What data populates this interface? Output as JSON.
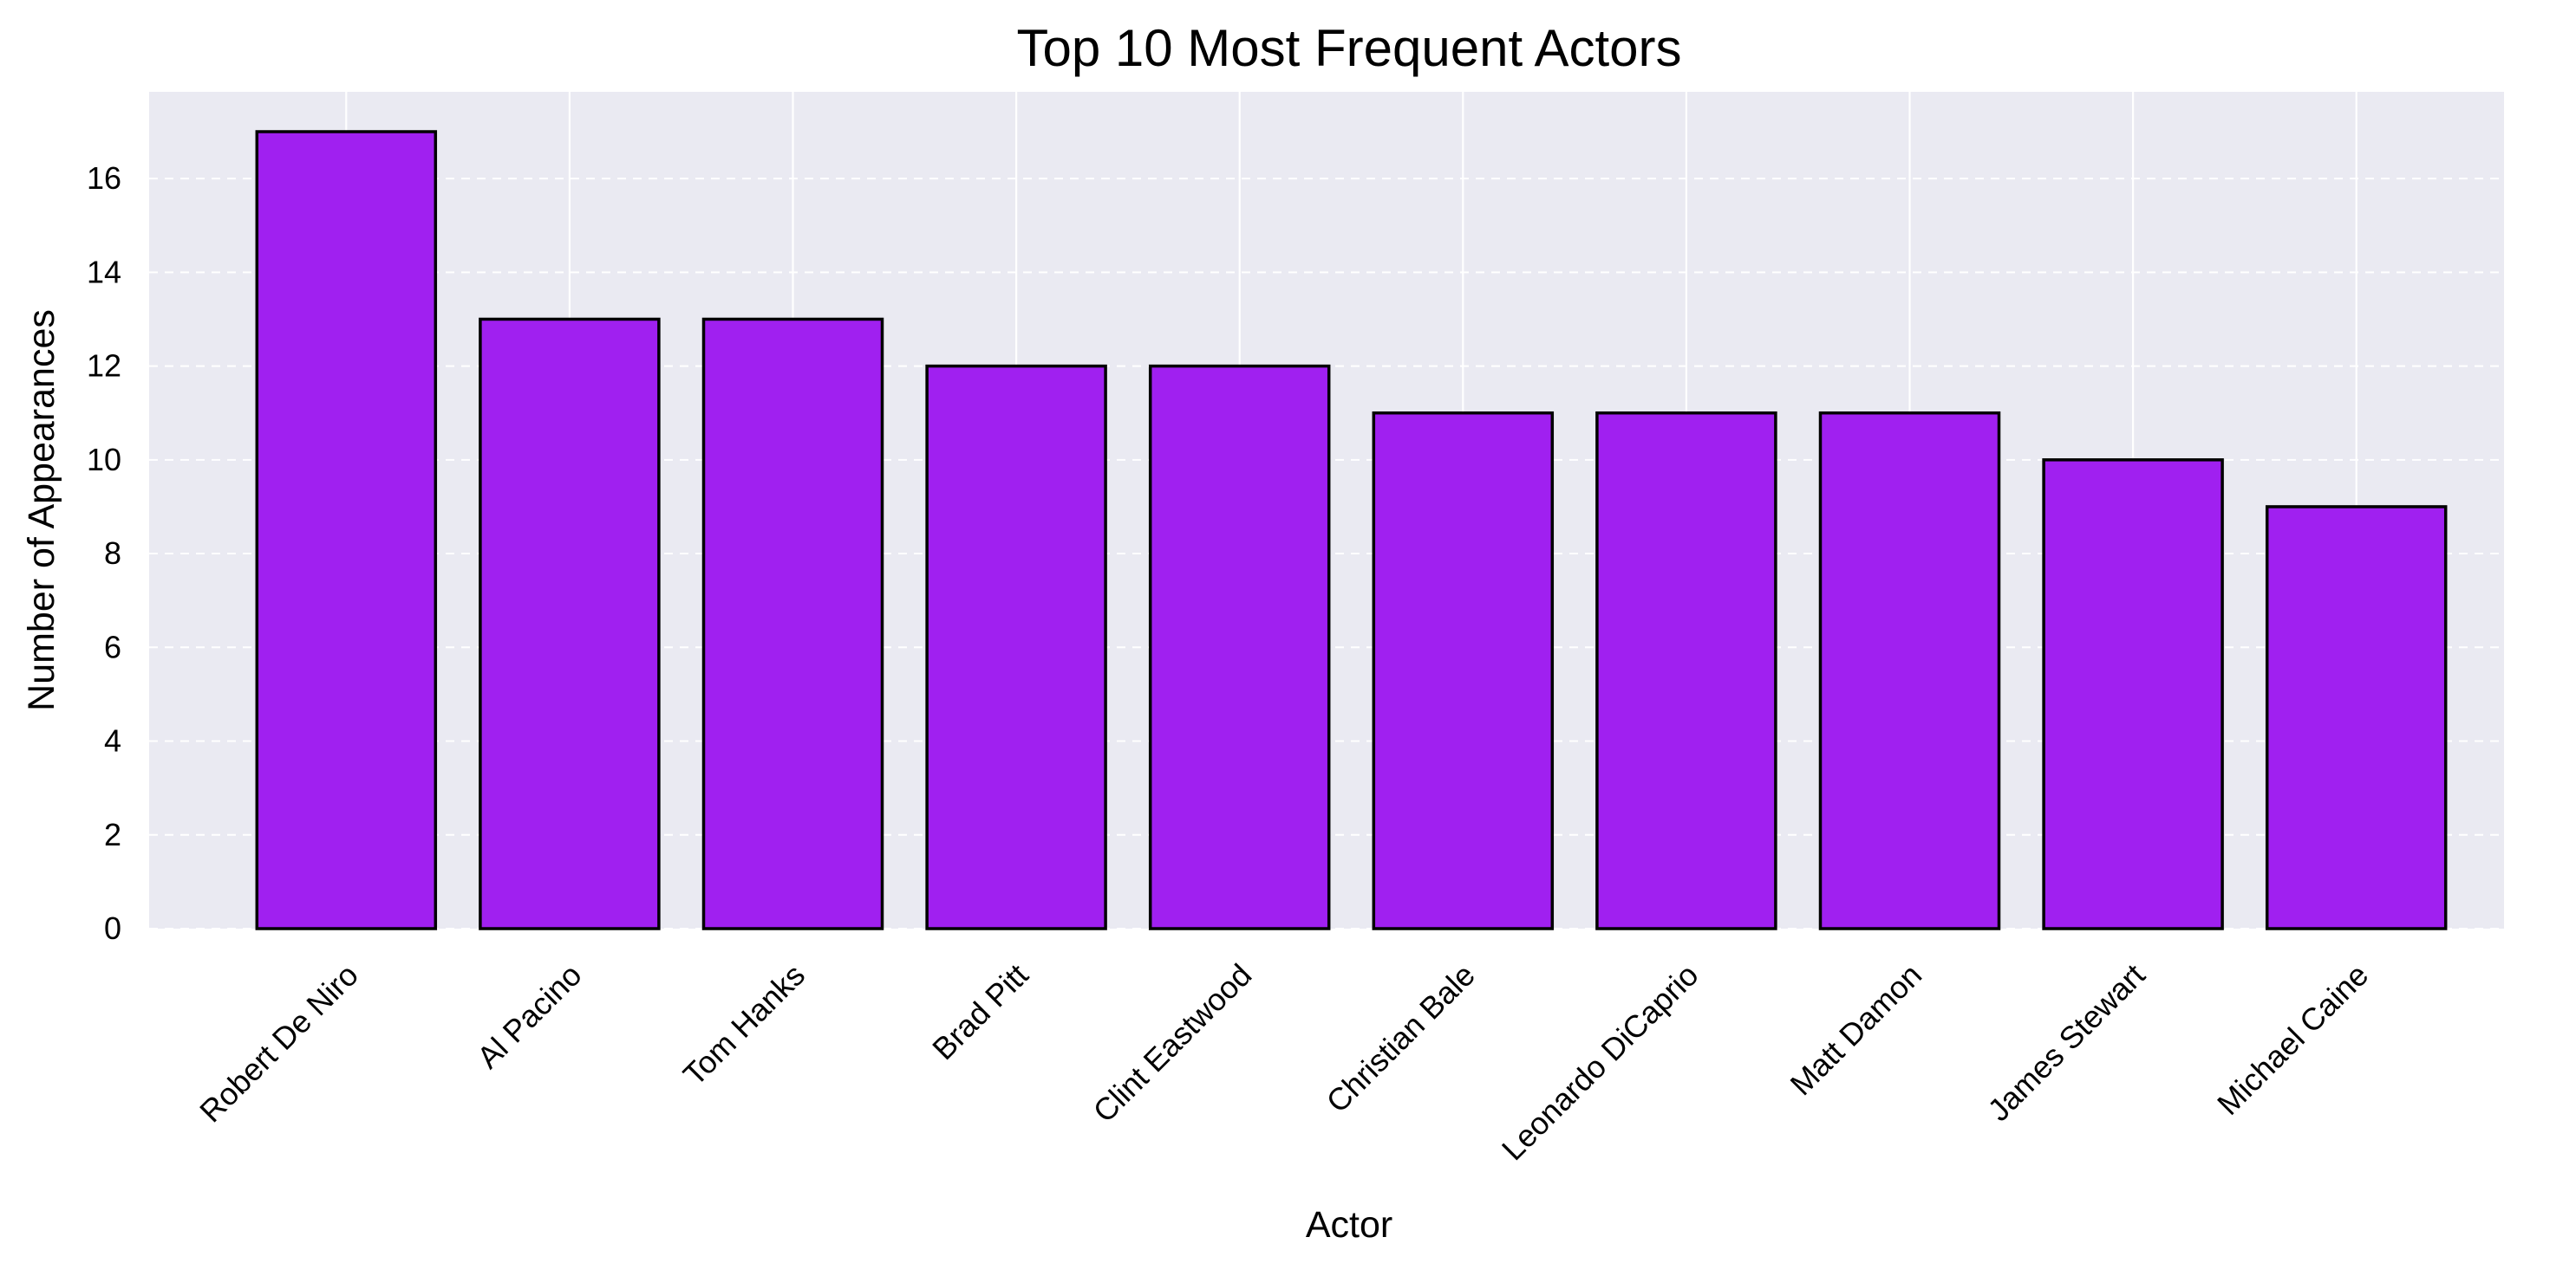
{
  "chart_data": {
    "type": "bar",
    "title": "Top 10 Most Frequent Actors",
    "xlabel": "Actor",
    "ylabel": "Number of Appearances",
    "categories": [
      "Robert De Niro",
      "Al Pacino",
      "Tom Hanks",
      "Brad Pitt",
      "Clint Eastwood",
      "Christian Bale",
      "Leonardo DiCaprio",
      "Matt Damon",
      "James Stewart",
      "Michael Caine"
    ],
    "values": [
      17,
      13,
      13,
      12,
      12,
      11,
      11,
      11,
      10,
      9
    ],
    "ylim": [
      0,
      17.85
    ],
    "yticks": [
      0,
      2,
      4,
      6,
      8,
      10,
      12,
      14,
      16
    ],
    "grid": true,
    "bar_color": "#a020f0",
    "bar_edge_color": "#000000",
    "plot_background": "#eaeaf2",
    "grid_color": "#ffffff"
  }
}
